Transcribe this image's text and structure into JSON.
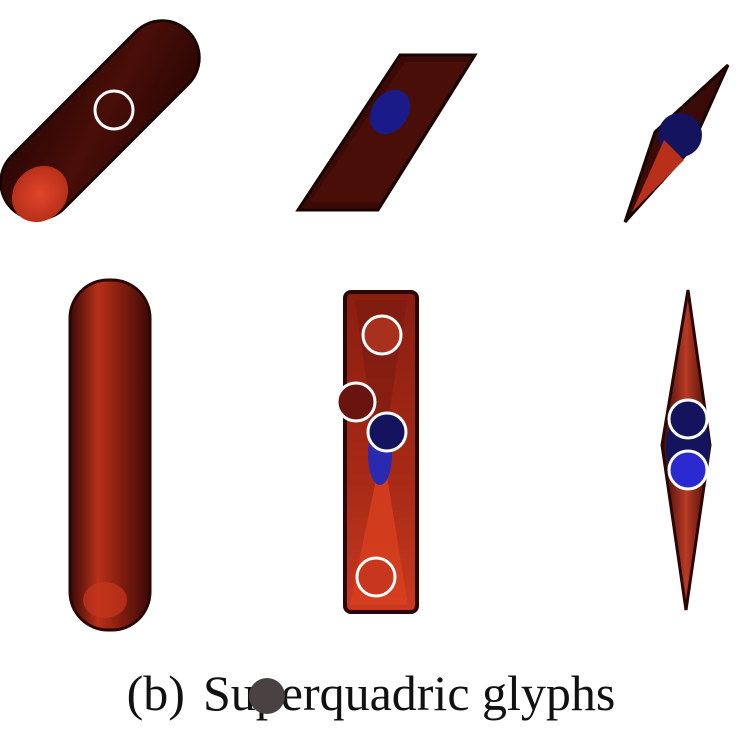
{
  "figure": {
    "subfigure_label": "(b)",
    "caption_text": "Superquadric glyphs"
  },
  "colors": {
    "background": "#ffffff",
    "glyph_dark": "#3a0a06",
    "glyph_mid": "#7a1a10",
    "glyph_red": "#c8361d",
    "glyph_blue": "#1a1a88",
    "marker_red": "#a8301c",
    "marker_darkred": "#6a1410",
    "marker_navy": "#14145e",
    "marker_blue": "#2a2ad0",
    "marker_outline": "#ffffff",
    "cursor": "#4a4242"
  },
  "glyphs": [
    {
      "row": 1,
      "col": 1,
      "shape": "cylinder",
      "orientation": "diagonal"
    },
    {
      "row": 1,
      "col": 2,
      "shape": "box",
      "orientation": "diagonal"
    },
    {
      "row": 1,
      "col": 3,
      "shape": "spindle",
      "orientation": "diagonal"
    },
    {
      "row": 2,
      "col": 1,
      "shape": "cylinder",
      "orientation": "vertical"
    },
    {
      "row": 2,
      "col": 2,
      "shape": "box",
      "orientation": "vertical"
    },
    {
      "row": 2,
      "col": 3,
      "shape": "spindle",
      "orientation": "vertical"
    }
  ]
}
